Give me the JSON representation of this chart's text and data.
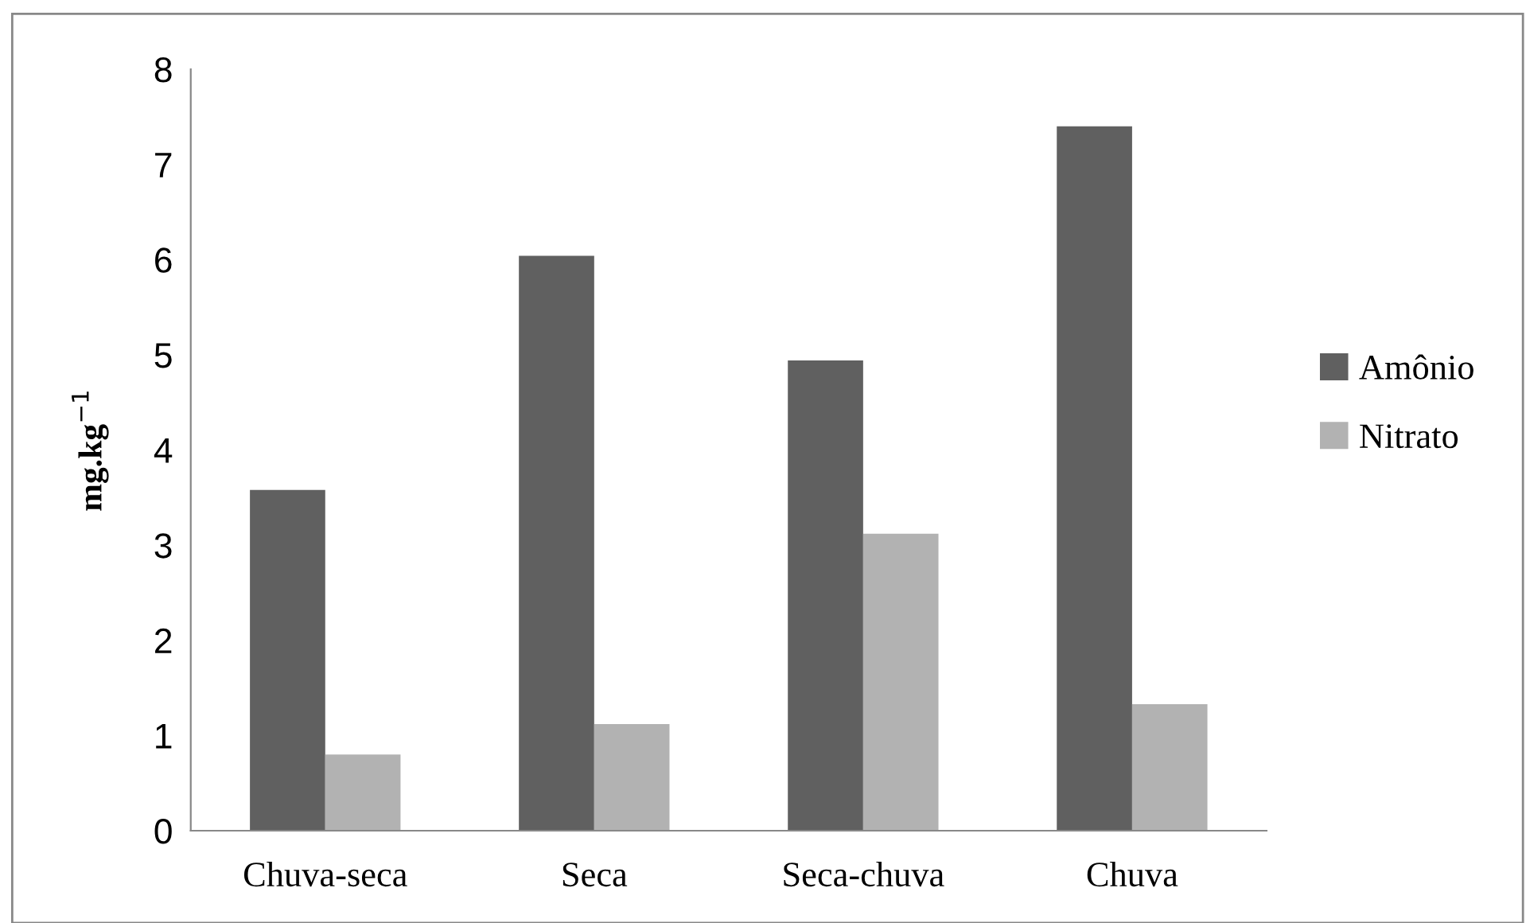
{
  "chart_data": {
    "type": "bar",
    "categories": [
      "Chuva-seca",
      "Seca",
      "Seca-chuva",
      "Chuva"
    ],
    "series": [
      {
        "name": "Amônio",
        "color": "#606060",
        "values": [
          3.58,
          6.04,
          4.94,
          7.4
        ]
      },
      {
        "name": "Nitrato",
        "color": "#b2b2b2",
        "values": [
          0.8,
          1.12,
          3.12,
          1.33
        ]
      }
    ],
    "ylabel": "mg.kg$^{−1}$",
    "ylim": [
      0,
      8
    ],
    "yticks": [
      0,
      1,
      2,
      3,
      4,
      5,
      6,
      7,
      8
    ],
    "grid": false,
    "legend": "right"
  }
}
